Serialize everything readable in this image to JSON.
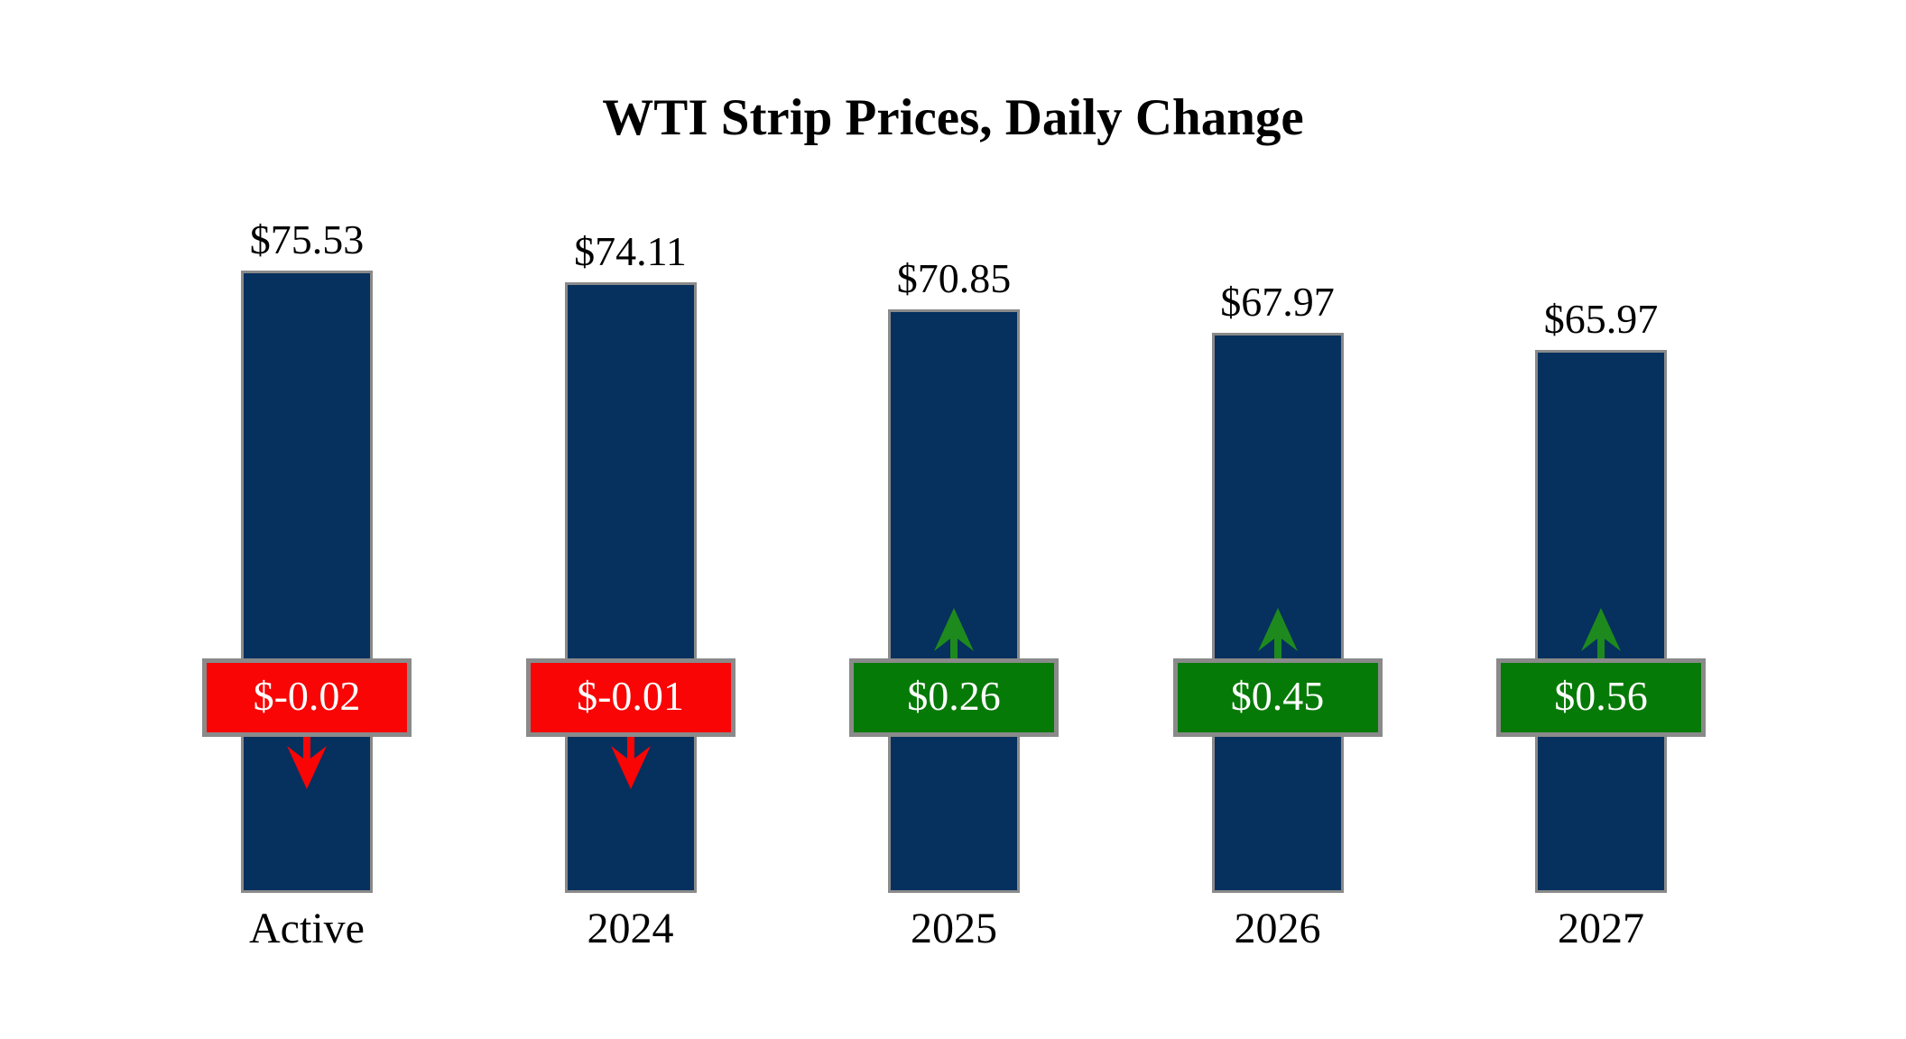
{
  "chart_data": {
    "type": "bar",
    "title": "WTI Strip Prices, Daily Change",
    "categories": [
      "Active",
      "2024",
      "2025",
      "2026",
      "2027"
    ],
    "values": [
      75.53,
      74.11,
      70.85,
      67.97,
      65.97
    ],
    "changes": [
      -0.02,
      -0.01,
      0.26,
      0.45,
      0.56
    ],
    "xlabel": "",
    "ylabel": "",
    "ylim": [
      0,
      78
    ],
    "grid": false,
    "legend": "none",
    "bars": [
      {
        "category": "Active",
        "value": 75.53,
        "price_label": "$75.53",
        "change": -0.02,
        "change_label": "$-0.02",
        "direction": "down"
      },
      {
        "category": "2024",
        "value": 74.11,
        "price_label": "$74.11",
        "change": -0.01,
        "change_label": "$-0.01",
        "direction": "down"
      },
      {
        "category": "2025",
        "value": 70.85,
        "price_label": "$70.85",
        "change": 0.26,
        "change_label": "$0.26",
        "direction": "up"
      },
      {
        "category": "2026",
        "value": 67.97,
        "price_label": "$67.97",
        "change": 0.45,
        "change_label": "$0.45",
        "direction": "up"
      },
      {
        "category": "2027",
        "value": 65.97,
        "price_label": "$65.97",
        "change": 0.56,
        "change_label": "$0.56",
        "direction": "up"
      }
    ],
    "colors": {
      "bar_fill": "#06305D",
      "bar_border": "#8A8A8A",
      "badge_border": "#8A8A8A",
      "badge_negative": "#F90505",
      "badge_positive": "#067A06",
      "arrow_negative": "#F90505",
      "arrow_positive": "#1E8A1E",
      "badge_text": "#FFFFFF",
      "text": "#000000",
      "background": "#FFFFFF"
    }
  }
}
